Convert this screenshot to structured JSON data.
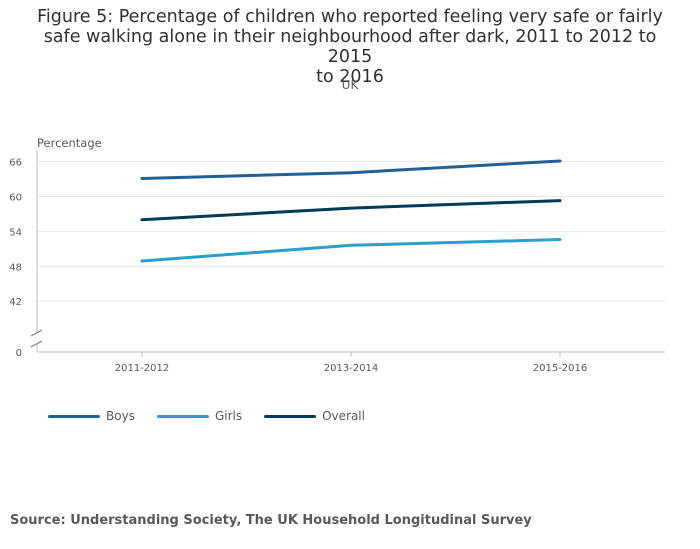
{
  "chart_data": {
    "type": "line",
    "title": "Figure 5: Percentage of children who reported feeling very safe or fairly safe walking alone in their neighbourhood after dark, 2011 to 2012 to 2015 to 2016",
    "title_lines": [
      "Figure 5: Percentage of children who reported feeling very safe or fairly",
      "safe walking alone in their neighbourhood after dark, 2011 to 2012 to 2015",
      "to 2016"
    ],
    "subtitle": "UK",
    "ylabel": "Percentage",
    "xlabel": "",
    "categories": [
      "2011-2012",
      "2013-2014",
      "2015-2016"
    ],
    "y_ticks": [
      "0",
      "42",
      "48",
      "54",
      "60",
      "66"
    ],
    "ylim_visible": [
      36,
      68
    ],
    "axis_break": true,
    "grid": true,
    "legend_position": "bottom-left",
    "series": [
      {
        "name": "Boys",
        "values": [
          63.1,
          64.1,
          66.1
        ],
        "color": "#206095"
      },
      {
        "name": "Girls",
        "values": [
          48.9,
          51.6,
          52.6
        ],
        "color": "#27a0cc"
      },
      {
        "name": "Overall",
        "values": [
          56.0,
          58.0,
          59.3
        ],
        "color": "#003c57"
      }
    ]
  },
  "source": "Source: Understanding Society, The UK Household Longitudinal Survey"
}
